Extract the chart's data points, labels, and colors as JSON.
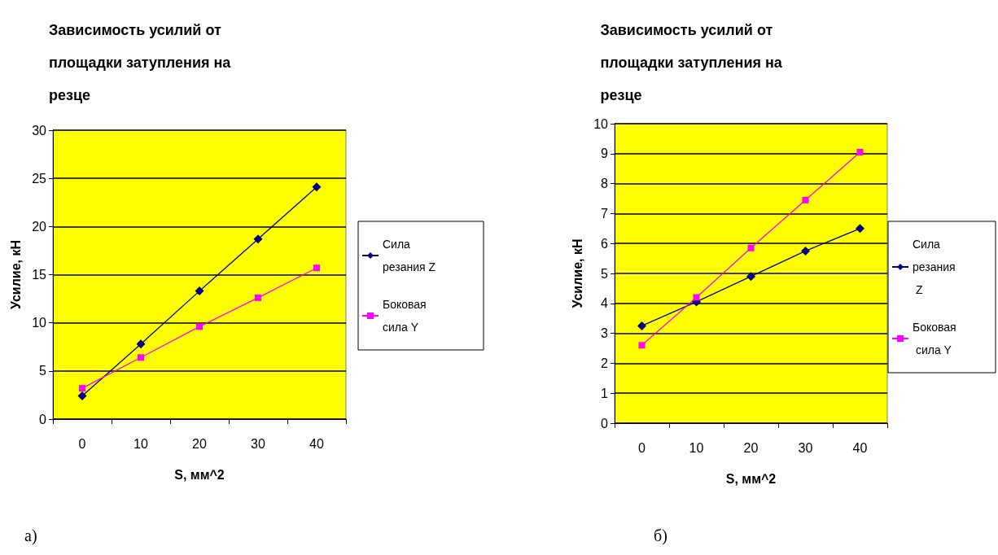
{
  "chart_data": [
    {
      "type": "line",
      "title": "Зависимость усилий от площадки затупления на резце",
      "xlabel": "S, мм^2",
      "ylabel": "Усилие, кН",
      "categories": [
        "0",
        "10",
        "20",
        "30",
        "40"
      ],
      "series": [
        {
          "name": "Сила резания Z",
          "color": "#000080",
          "marker": "diamond",
          "values": [
            2.4,
            7.8,
            13.3,
            18.7,
            24.1
          ]
        },
        {
          "name": "Боковая сила Y",
          "color": "#ff00ff",
          "marker": "square",
          "values": [
            3.2,
            6.4,
            9.6,
            12.6,
            15.7
          ]
        }
      ],
      "ylim": [
        0,
        30
      ],
      "yticks": [
        0,
        5,
        10,
        15,
        20,
        25,
        30
      ],
      "grid": "y",
      "legend": "right",
      "annotations": [
        "а)"
      ]
    },
    {
      "type": "line",
      "title": "Зависимость усилий от площадки затупления на резце",
      "xlabel": "S, мм^2",
      "ylabel": "Усилие, кН",
      "categories": [
        "0",
        "10",
        "20",
        "30",
        "40"
      ],
      "series": [
        {
          "name": "Сила резания Z",
          "color": "#000080",
          "marker": "diamond",
          "values": [
            3.25,
            4.05,
            4.9,
            5.75,
            6.5
          ]
        },
        {
          "name": "Боковая сила Y",
          "color": "#ff00ff",
          "marker": "square",
          "values": [
            2.6,
            4.2,
            5.85,
            7.45,
            9.05
          ]
        }
      ],
      "ylim": [
        0,
        10
      ],
      "yticks": [
        0,
        1,
        2,
        3,
        4,
        5,
        6,
        7,
        8,
        9,
        10
      ],
      "grid": "y",
      "legend": "right",
      "annotations": [
        "б)"
      ]
    }
  ]
}
